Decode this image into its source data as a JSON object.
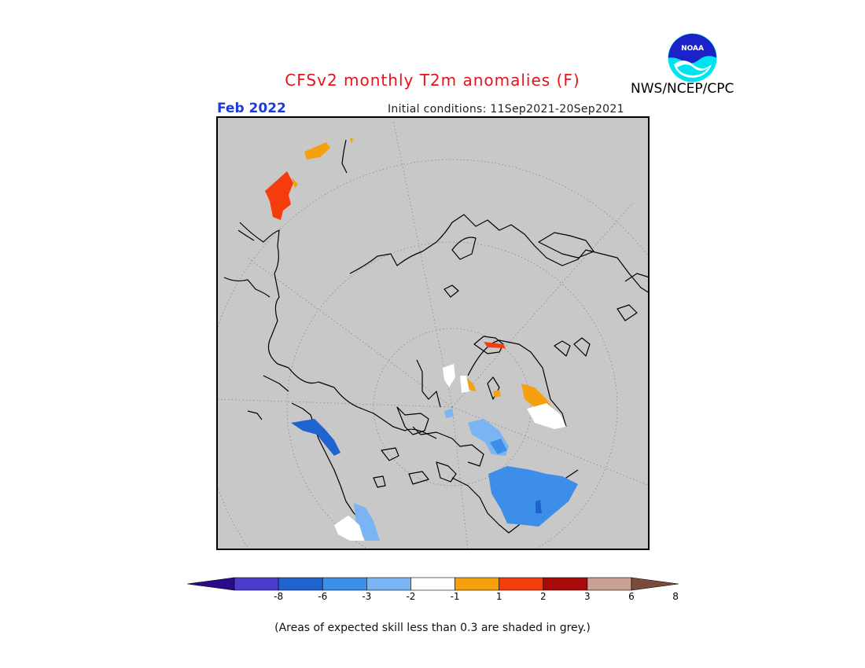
{
  "title": "CFSv2 monthly T2m anomalies (F)",
  "forecast_month": "Feb 2022",
  "initial_conditions": "Initial conditions: 11Sep2021-20Sep2021",
  "agency": "NWS/NCEP/CPC",
  "logo": {
    "text": "NOAA",
    "icon": "noaa-logo"
  },
  "footnote": "(Areas of expected skill less than 0.3 are shaded in grey.)",
  "colorbar": {
    "ticks": [
      "-8",
      "-6",
      "-3",
      "-2",
      "-1",
      "1",
      "2",
      "3",
      "6",
      "8"
    ],
    "colors": [
      "#2a0b8c",
      "#4b3ccc",
      "#1f63d0",
      "#3d8ee8",
      "#7ab4f2",
      "#ffffff",
      "#f5a00d",
      "#f53c0c",
      "#a80a0a",
      "#c9a092",
      "#7a4b3a"
    ]
  },
  "map_colors": {
    "background": "#c8c8c8",
    "coastline": "#000000"
  }
}
